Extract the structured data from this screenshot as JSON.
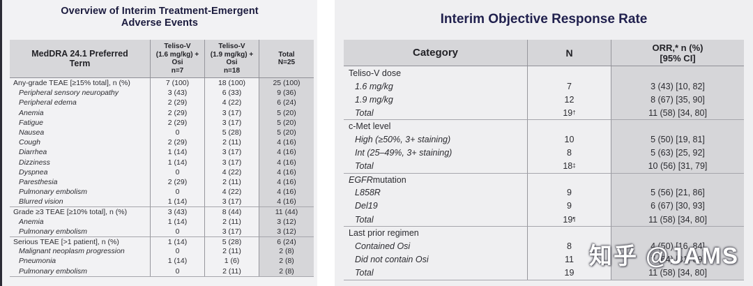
{
  "colors": {
    "title_navy": "#21214e",
    "header_bg": "#d6d6d9",
    "shaded_column_bg": "#d6d6d9",
    "slide_bg_left": "#f2f2f4",
    "slide_bg_right": "#efeff1",
    "body_text": "#2b2b30",
    "divider": "#96969c"
  },
  "left_slide": {
    "title": "Overview of Interim Treatment-Emergent\nAdverse Events",
    "table": {
      "col_headers": [
        "MedDRA 24.1 Preferred\nTerm",
        "Teliso-V\n(1.6 mg/kg) +\nOsi\nn=7",
        "Teliso-V\n(1.9 mg/kg) +\nOsi\nn=18",
        "Total\nN=25"
      ],
      "rows": [
        {
          "label": "Any-grade TEAE [≥15% total], n (%)",
          "italic": false,
          "sep": false,
          "c": [
            "7 (100)",
            "18 (100)",
            "25 (100)"
          ]
        },
        {
          "label": "Peripheral sensory neuropathy",
          "italic": true,
          "sep": false,
          "c": [
            "3 (43)",
            "6 (33)",
            "9 (36)"
          ]
        },
        {
          "label": "Peripheral edema",
          "italic": true,
          "sep": false,
          "c": [
            "2 (29)",
            "4 (22)",
            "6 (24)"
          ]
        },
        {
          "label": "Anemia",
          "italic": true,
          "sep": false,
          "c": [
            "2 (29)",
            "3 (17)",
            "5 (20)"
          ]
        },
        {
          "label": "Fatigue",
          "italic": true,
          "sep": false,
          "c": [
            "2 (29)",
            "3 (17)",
            "5 (20)"
          ]
        },
        {
          "label": "Nausea",
          "italic": true,
          "sep": false,
          "c": [
            "0",
            "5 (28)",
            "5 (20)"
          ]
        },
        {
          "label": "Cough",
          "italic": true,
          "sep": false,
          "c": [
            "2 (29)",
            "2 (11)",
            "4 (16)"
          ]
        },
        {
          "label": "Diarrhea",
          "italic": true,
          "sep": false,
          "c": [
            "1 (14)",
            "3 (17)",
            "4 (16)"
          ]
        },
        {
          "label": "Dizziness",
          "italic": true,
          "sep": false,
          "c": [
            "1 (14)",
            "3 (17)",
            "4 (16)"
          ]
        },
        {
          "label": "Dyspnea",
          "italic": true,
          "sep": false,
          "c": [
            "0",
            "4 (22)",
            "4 (16)"
          ]
        },
        {
          "label": "Paresthesia",
          "italic": true,
          "sep": false,
          "c": [
            "2 (29)",
            "2 (11)",
            "4 (16)"
          ]
        },
        {
          "label": "Pulmonary embolism",
          "italic": true,
          "sep": false,
          "c": [
            "0",
            "4 (22)",
            "4 (16)"
          ]
        },
        {
          "label": "Blurred vision",
          "italic": true,
          "sep": false,
          "c": [
            "1 (14)",
            "3 (17)",
            "4 (16)"
          ]
        },
        {
          "label": "Grade ≥3 TEAE [≥10% total], n (%)",
          "italic": false,
          "sep": true,
          "c": [
            "3 (43)",
            "8 (44)",
            "11 (44)"
          ]
        },
        {
          "label": "Anemia",
          "italic": true,
          "sep": false,
          "c": [
            "1 (14)",
            "2 (11)",
            "3 (12)"
          ]
        },
        {
          "label": "Pulmonary embolism",
          "italic": true,
          "sep": false,
          "c": [
            "0",
            "3 (17)",
            "3 (12)"
          ]
        },
        {
          "label": "Serious TEAE [>1 patient], n (%)",
          "italic": false,
          "sep": true,
          "c": [
            "1 (14)",
            "5 (28)",
            "6 (24)"
          ]
        },
        {
          "label": "Malignant neoplasm progression",
          "italic": true,
          "sep": false,
          "c": [
            "0",
            "2 (11)",
            "2 (8)"
          ]
        },
        {
          "label": "Pneumonia",
          "italic": true,
          "sep": false,
          "c": [
            "1 (14)",
            "1 (6)",
            "2 (8)"
          ]
        },
        {
          "label": "Pulmonary embolism",
          "italic": true,
          "sep": false,
          "c": [
            "0",
            "2 (11)",
            "2 (8)"
          ]
        }
      ]
    }
  },
  "right_slide": {
    "title": "Interim Objective Response Rate",
    "table": {
      "col_headers": [
        "Category",
        "N",
        "ORR,* n (%)\n[95% CI]"
      ],
      "rows": [
        {
          "label": "Teliso-V dose",
          "type": "group",
          "sep": false,
          "n": "",
          "orr": ""
        },
        {
          "label": "1.6 mg/kg",
          "type": "item",
          "sep": false,
          "n": "7",
          "orr": "3 (43) [10, 82]"
        },
        {
          "label": "1.9 mg/kg",
          "type": "item",
          "sep": false,
          "n": "12",
          "orr": "8 (67) [35, 90]"
        },
        {
          "label": "Total",
          "type": "item",
          "sep": false,
          "n": "19†",
          "orr": "11 (58) [34, 80]"
        },
        {
          "label": "c-Met level",
          "type": "group",
          "sep": true,
          "n": "",
          "orr": ""
        },
        {
          "label": "High (≥50%, 3+ staining)",
          "type": "item",
          "sep": false,
          "n": "10",
          "orr": "5 (50) [19, 81]"
        },
        {
          "label": "Int (25–49%, 3+ staining)",
          "type": "item",
          "sep": false,
          "n": "8",
          "orr": "5 (63) [25, 92]"
        },
        {
          "label": "Total",
          "type": "item",
          "sep": false,
          "n": "18‡",
          "orr": "10 (56) [31, 79]"
        },
        {
          "label_em": "EGFR",
          "label": " mutation",
          "type": "group",
          "sep": true,
          "n": "",
          "orr": ""
        },
        {
          "label": "L858R",
          "type": "item",
          "sep": false,
          "n": "9",
          "orr": "5 (56) [21, 86]"
        },
        {
          "label": "Del19",
          "type": "item",
          "sep": false,
          "n": "9",
          "orr": "6 (67) [30, 93]"
        },
        {
          "label": "Total",
          "type": "item",
          "sep": false,
          "n": "19¶",
          "orr": "11 (58) [34, 80]"
        },
        {
          "label": "Last prior regimen",
          "type": "group",
          "sep": true,
          "n": "",
          "orr": ""
        },
        {
          "label": "Contained Osi",
          "type": "item",
          "sep": false,
          "n": "8",
          "orr": "4 (50) [16, 84]"
        },
        {
          "label": "Did not contain Osi",
          "type": "item",
          "sep": false,
          "n": "11",
          "orr": "7 (64) [31, 89]"
        },
        {
          "label": "Total",
          "type": "item",
          "sep": false,
          "n": "19",
          "orr": "11 (58) [34, 80]"
        }
      ]
    }
  },
  "watermark": {
    "text": "知乎 @JAMS"
  }
}
